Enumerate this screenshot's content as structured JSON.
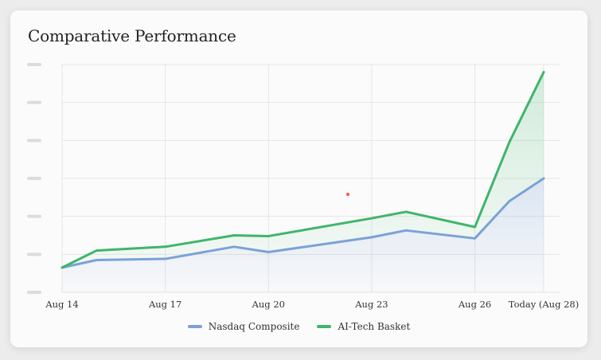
{
  "chart_data": {
    "type": "line",
    "title": "Comparative Performance",
    "xlabel": "",
    "ylabel": "",
    "x_tick_labels": [
      "Aug 14",
      "Aug 17",
      "Aug 20",
      "Aug 23",
      "Aug 26",
      "Today (Aug 28)"
    ],
    "x": [
      "Aug 14",
      "Aug 15",
      "Aug 17",
      "Aug 19",
      "Aug 20",
      "Aug 23",
      "Aug 24",
      "Aug 26",
      "Aug 27",
      "Aug 28"
    ],
    "ylim": [
      0,
      6
    ],
    "y_tick_labels_visible": false,
    "grid": true,
    "legend_position": "bottom",
    "series": [
      {
        "name": "Nasdaq Composite",
        "color": "#7ba2d6",
        "values": [
          0.65,
          0.85,
          0.88,
          1.2,
          1.06,
          1.45,
          1.63,
          1.42,
          2.4,
          3.0
        ]
      },
      {
        "name": "AI-Tech Basket",
        "color": "#3fb56a",
        "values": [
          0.65,
          1.1,
          1.2,
          1.5,
          1.48,
          1.95,
          2.12,
          1.72,
          3.95,
          5.8
        ]
      }
    ]
  }
}
